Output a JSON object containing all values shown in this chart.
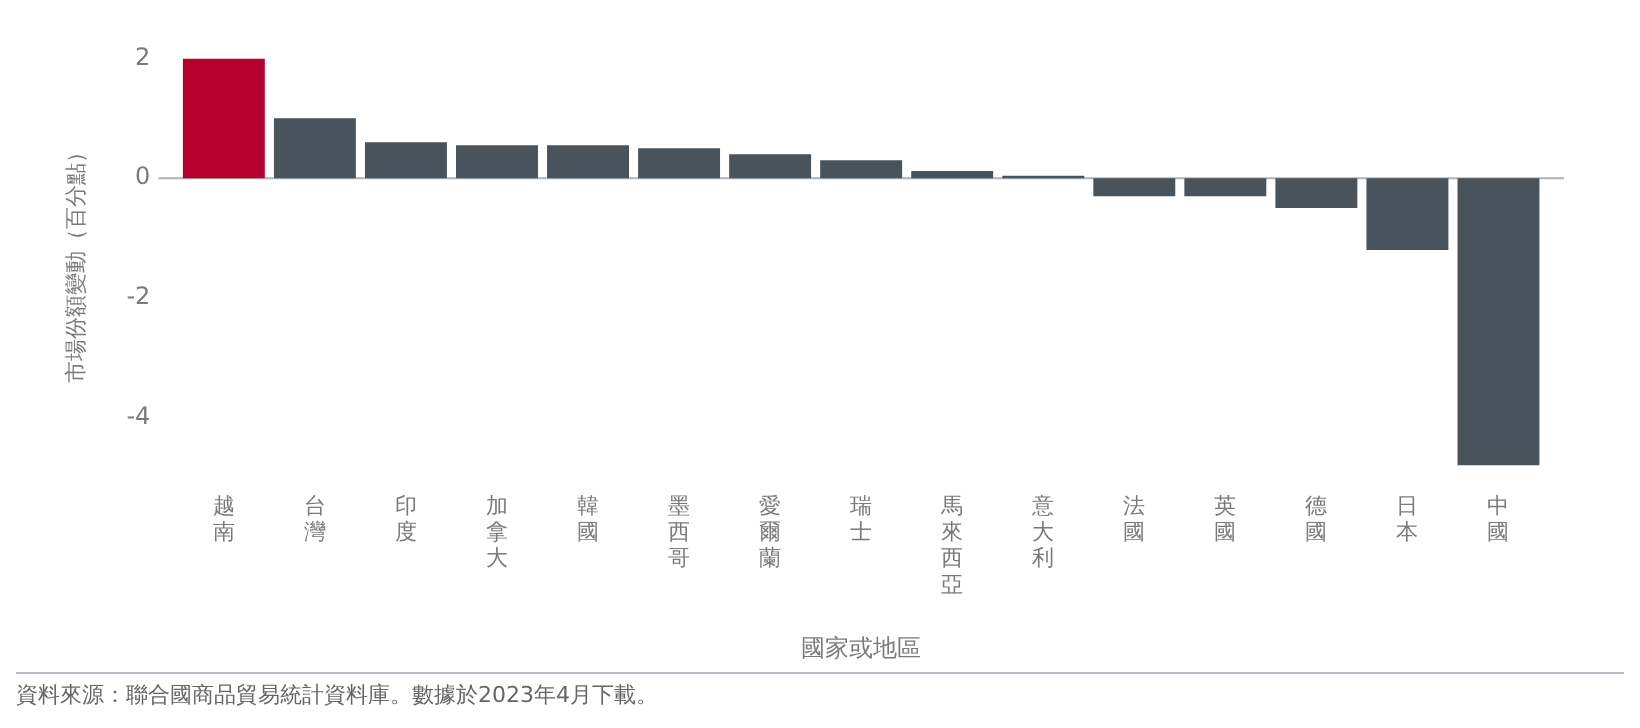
{
  "chart_data": {
    "type": "bar",
    "xlabel": "國家或地區",
    "ylabel": "市場份額變動（百分點）",
    "categories": [
      "越南",
      "台灣",
      "印度",
      "加拿大",
      "韓國",
      "墨西哥",
      "愛爾蘭",
      "瑞士",
      "馬來西亞",
      "意大利",
      "法國",
      "英國",
      "德國",
      "日本",
      "中國"
    ],
    "values": [
      2.0,
      1.0,
      0.6,
      0.55,
      0.55,
      0.5,
      0.4,
      0.3,
      0.12,
      0.04,
      -0.3,
      -0.3,
      -0.5,
      -1.2,
      -4.8
    ],
    "colors": [
      "#b5002f",
      "#48535b",
      "#48535b",
      "#48535b",
      "#48535b",
      "#48535b",
      "#48535b",
      "#48535b",
      "#48535b",
      "#48535b",
      "#48535b",
      "#48535b",
      "#48535b",
      "#48535b",
      "#48535b"
    ],
    "ylim": [
      -4.8,
      2
    ],
    "yticks": [
      -4,
      -2,
      0,
      2
    ],
    "grid": false,
    "legend": false,
    "ref_lines": [
      {
        "axis": "y",
        "value": 0,
        "color": "#b0b4b8"
      }
    ],
    "annotations": [
      "資料來源：聯合國商品貿易統計資料庫。數據於2023年4月下載。"
    ]
  }
}
